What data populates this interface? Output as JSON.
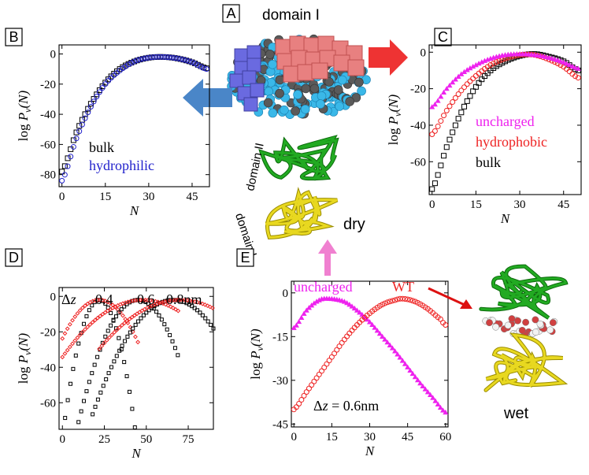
{
  "panels": {
    "A": {
      "letter": "A",
      "title": "domain I"
    },
    "B": {
      "letter": "B"
    },
    "C": {
      "letter": "C"
    },
    "D": {
      "letter": "D"
    },
    "E": {
      "letter": "E"
    }
  },
  "center_labels": {
    "domain_II": "domain II",
    "domain_I": "domain I",
    "dry": "dry",
    "wet": "wet"
  },
  "colors": {
    "blue_arrow": "#4a86c8",
    "red_arrow": "#ee3333",
    "pink_arrow": "#f080d0",
    "red_arrow2": "#dd1111",
    "domain_blue": "#6a6ae0",
    "domain_red": "#e88080",
    "atoms_cyan": "#3ab8e8",
    "atoms_grey": "#555555",
    "protein_green": "#22aa22",
    "protein_yellow": "#e8d820"
  },
  "chart_data": [
    {
      "panel": "B",
      "type": "scatter",
      "xlabel": "N",
      "ylabel": "log P_v(N)",
      "xlim": [
        -1,
        51
      ],
      "ylim": [
        -88,
        6
      ],
      "xticks": [
        "0",
        "15",
        "30",
        "45"
      ],
      "yticks": [
        "0",
        "-20",
        "-40",
        "-60",
        "-80"
      ],
      "legend_position": "lower-left",
      "series": [
        {
          "name": "bulk",
          "color": "#000000",
          "marker": "square",
          "peak_x": 37,
          "peak_y": -2,
          "points": [
            [
              0,
              -78
            ],
            [
              5,
              -52
            ],
            [
              10,
              -33
            ],
            [
              15,
              -19
            ],
            [
              20,
              -10
            ],
            [
              25,
              -5
            ],
            [
              30,
              -2.5
            ],
            [
              35,
              -2
            ],
            [
              40,
              -3
            ],
            [
              45,
              -5.5
            ],
            [
              50,
              -9.5
            ]
          ]
        },
        {
          "name": "hydrophilic",
          "color": "#2222cc",
          "marker": "circle",
          "peak_x": 37,
          "peak_y": -2,
          "points": [
            [
              0,
              -84
            ],
            [
              5,
              -56
            ],
            [
              10,
              -35
            ],
            [
              15,
              -20
            ],
            [
              20,
              -11
            ],
            [
              25,
              -5
            ],
            [
              30,
              -2.5
            ],
            [
              35,
              -2
            ],
            [
              40,
              -3
            ],
            [
              45,
              -5.5
            ],
            [
              50,
              -10
            ]
          ]
        }
      ]
    },
    {
      "panel": "C",
      "type": "scatter",
      "xlabel": "N",
      "ylabel": "log P_v(N)",
      "xlim": [
        -1,
        51
      ],
      "ylim": [
        -78,
        4
      ],
      "xticks": [
        "0",
        "15",
        "30",
        "45"
      ],
      "yticks": [
        "0",
        "-20",
        "-40",
        "-60"
      ],
      "legend_position": "lower-left",
      "series": [
        {
          "name": "uncharged",
          "color": "#ee22ee",
          "marker": "triangle",
          "points": [
            [
              0,
              -30
            ],
            [
              5,
              -20
            ],
            [
              10,
              -12
            ],
            [
              15,
              -7
            ],
            [
              20,
              -3.5
            ],
            [
              25,
              -1.5
            ],
            [
              30,
              -1
            ],
            [
              35,
              -1.5
            ],
            [
              40,
              -3
            ],
            [
              45,
              -5.5
            ],
            [
              50,
              -9
            ]
          ]
        },
        {
          "name": "hydrophobic",
          "color": "#ee2222",
          "marker": "circle",
          "points": [
            [
              0,
              -45
            ],
            [
              5,
              -32
            ],
            [
              10,
              -21
            ],
            [
              15,
              -13
            ],
            [
              20,
              -7
            ],
            [
              25,
              -3.5
            ],
            [
              30,
              -1.5
            ],
            [
              35,
              -1.5
            ],
            [
              40,
              -4
            ],
            [
              45,
              -8
            ],
            [
              50,
              -14
            ]
          ]
        },
        {
          "name": "bulk",
          "color": "#000000",
          "marker": "square",
          "points": [
            [
              0,
              -75
            ],
            [
              5,
              -52
            ],
            [
              10,
              -33
            ],
            [
              15,
              -19
            ],
            [
              20,
              -10
            ],
            [
              25,
              -5
            ],
            [
              30,
              -2
            ],
            [
              35,
              -1
            ],
            [
              40,
              -2.5
            ],
            [
              45,
              -5
            ],
            [
              50,
              -10
            ]
          ]
        }
      ]
    },
    {
      "panel": "D",
      "type": "scatter",
      "xlabel": "N",
      "ylabel": "log P_v(N)",
      "xlim": [
        -2,
        90
      ],
      "ylim": [
        -75,
        5
      ],
      "xticks": [
        "0",
        "25",
        "50",
        "75"
      ],
      "yticks": [
        "0",
        "-20",
        "-40",
        "-60"
      ],
      "annotations": [
        "Δz",
        "0.4",
        "0.6",
        "0.8nm"
      ],
      "series": [
        {
          "name": "0.4",
          "color": "#000000",
          "marker": "square",
          "peak_x": 22,
          "curv": 0.16,
          "xmin": 0,
          "xmax": 45
        },
        {
          "name": "0.4",
          "color": "#ee2222",
          "marker": "diamond",
          "peak_x": 22,
          "curv": 0.045,
          "xmin": 0,
          "xmax": 45
        },
        {
          "name": "0.6",
          "color": "#000000",
          "marker": "square",
          "peak_x": 45,
          "curv": 0.055,
          "xmin": 0,
          "xmax": 70
        },
        {
          "name": "0.6",
          "color": "#ee2222",
          "marker": "diamond",
          "peak_x": 48,
          "curv": 0.014,
          "xmin": 0,
          "xmax": 70
        },
        {
          "name": "0.8nm",
          "color": "#000000",
          "marker": "square",
          "peak_x": 66,
          "curv": 0.028,
          "xmin": 18,
          "xmax": 90
        },
        {
          "name": "0.8nm",
          "color": "#ee2222",
          "marker": "diamond",
          "peak_x": 70,
          "curv": 0.012,
          "xmin": 22,
          "xmax": 90
        }
      ]
    },
    {
      "panel": "E",
      "type": "scatter",
      "xlabel": "N",
      "ylabel": "log P_v(N)",
      "xlim": [
        -1,
        61
      ],
      "ylim": [
        -46,
        4
      ],
      "xticks": [
        "0",
        "15",
        "30",
        "45",
        "60"
      ],
      "yticks": [
        "0",
        "-15",
        "-30",
        "-45"
      ],
      "annotation": "Δz = 0.6nm",
      "series": [
        {
          "name": "uncharged",
          "color": "#ee22ee",
          "marker": "triangle",
          "peak_x": 14,
          "points": [
            [
              0,
              -12
            ],
            [
              5,
              -6
            ],
            [
              10,
              -2.5
            ],
            [
              14,
              -2
            ],
            [
              20,
              -3
            ],
            [
              25,
              -6
            ],
            [
              30,
              -10
            ],
            [
              35,
              -15
            ],
            [
              40,
              -20
            ],
            [
              45,
              -25.5
            ],
            [
              50,
              -31
            ],
            [
              55,
              -36
            ],
            [
              60,
              -41
            ]
          ]
        },
        {
          "name": "WT",
          "color": "#ee2222",
          "marker": "circle",
          "peak_x": 42,
          "points": [
            [
              0,
              -40
            ],
            [
              5,
              -34
            ],
            [
              10,
              -28
            ],
            [
              15,
              -22
            ],
            [
              20,
              -16
            ],
            [
              25,
              -11
            ],
            [
              30,
              -7
            ],
            [
              35,
              -4
            ],
            [
              40,
              -2.5
            ],
            [
              43,
              -2
            ],
            [
              48,
              -3
            ],
            [
              53,
              -5.5
            ],
            [
              58,
              -9
            ],
            [
              60,
              -11
            ]
          ]
        }
      ]
    }
  ]
}
